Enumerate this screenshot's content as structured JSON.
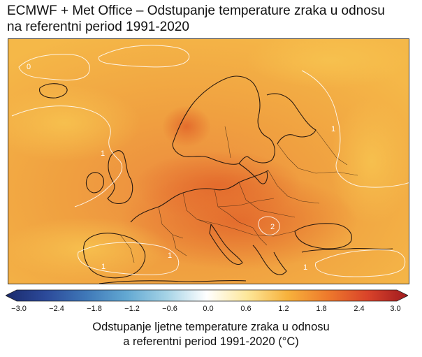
{
  "title": {
    "line1": "ECMWF + Met Office – Odstupanje temperature zraka u odnosu",
    "line2": "na referentni period 1991-2020"
  },
  "map": {
    "region": "Europe",
    "contour_labels": [
      "0",
      "1",
      "1",
      "1",
      "1",
      "2",
      "1"
    ]
  },
  "colorbar": {
    "ticks": [
      "−3.0",
      "−2.4",
      "−1.8",
      "−1.2",
      "−0.6",
      "0.0",
      "0.6",
      "1.2",
      "1.8",
      "2.4",
      "3.0"
    ],
    "colors": [
      "#1a2a6c",
      "#2c4a9a",
      "#3f78b8",
      "#62a8d2",
      "#a5d3e6",
      "#ffffff",
      "#fde79a",
      "#f7b23c",
      "#ee7a2c",
      "#d9432a",
      "#a01a1f"
    ]
  },
  "caption": {
    "line1": "Odstupanje ljetne temperature zraka u odnosu",
    "line2": "a referentni period 1991-2020 (°C)"
  }
}
